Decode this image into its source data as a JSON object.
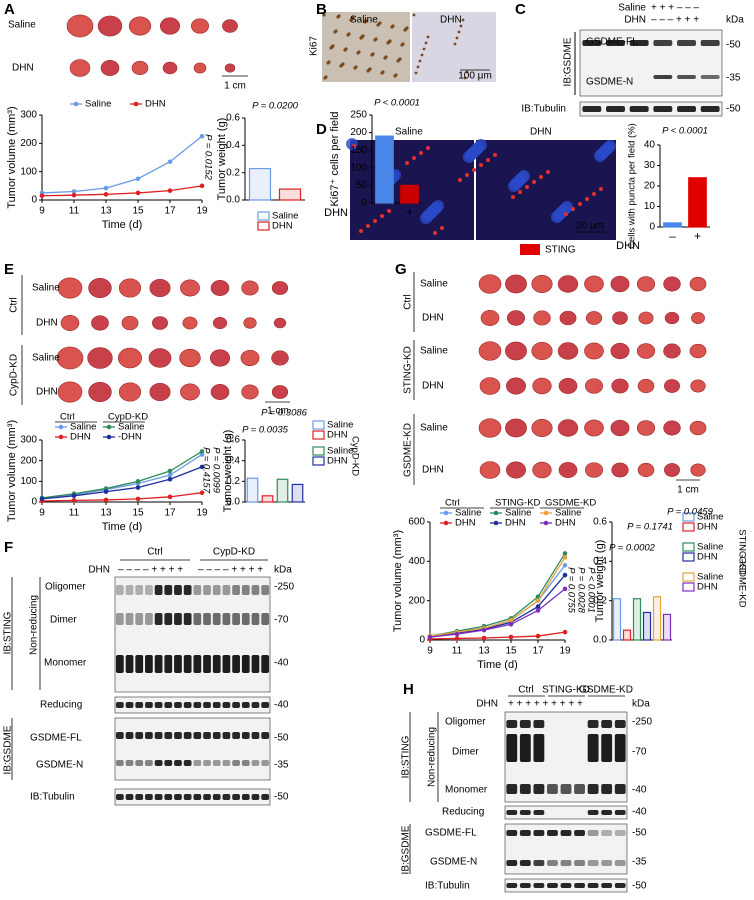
{
  "figure": {
    "A": {
      "label": "A",
      "texts": [
        "Saline",
        "DHN",
        "1 cm"
      ]
    },
    "B": {
      "label": "B",
      "texts": [
        "Saline",
        "DHN",
        "Ki67",
        "100 μm"
      ]
    },
    "C": {
      "label": "C",
      "texts": [
        "Saline",
        "DHN",
        "+ + + – – –",
        "– – – + + +",
        "kDa",
        "GSDME-FL",
        "GSDME-N",
        "IB:GSDME",
        "IB:Tubulin",
        "-50",
        "-35",
        "-50"
      ]
    },
    "D": {
      "label": "D",
      "texts": [
        "Saline",
        "DHN",
        "20 μm",
        "STING"
      ]
    },
    "E": {
      "label": "E",
      "texts": [
        "Saline",
        "DHN",
        "Saline",
        "DHN",
        "Ctrl",
        "CypD-KD",
        "1 cm"
      ]
    },
    "F": {
      "label": "F",
      "texts": [
        "DHN",
        "– – – – + + + +",
        "– – – – + + + +",
        "Ctrl",
        "CypD-KD",
        "kDa",
        "Oligomer",
        "Dimer",
        "Monomer",
        "Non-reducing",
        "IB:STING",
        "Reducing",
        "IB:GSDME",
        "GSDME-FL",
        "GSDME-N",
        "IB:Tubulin",
        "-250",
        "-70",
        "-40",
        "-40",
        "-50",
        "-35",
        "-50"
      ]
    },
    "G": {
      "label": "G",
      "texts": [
        "Saline",
        "DHN",
        "Saline",
        "DHN",
        "Saline",
        "DHN",
        "Ctrl",
        "STING-KD",
        "GSDME-KD",
        "1 cm"
      ]
    },
    "H": {
      "label": "H",
      "texts": [
        "DHN",
        "+ + + + + + + + +",
        "Ctrl",
        "STING-KD",
        "GSDME-KD",
        "kDa",
        "Oligomer",
        "Dimer",
        "Monomer",
        "Non-reducing",
        "IB:STING",
        "Reducing",
        "IB:GSDME",
        "GSDME-FL",
        "GSDME-N",
        "IB:Tubulin",
        "-250",
        "-70",
        "-40",
        "-40",
        "-50",
        "-35",
        "-50"
      ]
    }
  },
  "chart_data": [
    {
      "type": "line",
      "xlabel": "Time (d)",
      "ylabel": "Tumor volume (mm³)",
      "x": [
        9,
        11,
        13,
        15,
        17,
        19
      ],
      "xlim": [
        9,
        19
      ],
      "xticks": [
        9,
        11,
        13,
        15,
        17,
        19
      ],
      "ylim": [
        0,
        300
      ],
      "yticks": [
        0,
        100,
        200,
        300
      ],
      "series": [
        {
          "name": "Saline",
          "color": "#6a9be8",
          "values": [
            25,
            30,
            42,
            75,
            135,
            225
          ]
        },
        {
          "name": "DHN",
          "color": "#e02020",
          "values": [
            15,
            17,
            20,
            25,
            33,
            50
          ]
        }
      ],
      "annotations": [
        "P = 0.0152"
      ]
    },
    {
      "type": "bar",
      "bar_style": "outline",
      "ylabel": "Tumor weight (g)",
      "categories": [
        "Saline",
        "DHN"
      ],
      "values": [
        0.23,
        0.08
      ],
      "colors": [
        "#6a9be8",
        "#e02020"
      ],
      "ylim": [
        0,
        0.6
      ],
      "yticks": [
        {
          "value": 0,
          "label": "0.0"
        },
        {
          "value": 0.2,
          "label": "0.2"
        },
        {
          "value": 0.4,
          "label": "0.4"
        },
        {
          "value": 0.6,
          "label": "0.6"
        }
      ],
      "annotations": [
        "P = 0.0200"
      ]
    },
    {
      "type": "bar",
      "bar_style": "solid",
      "ylabel": "Ki67⁺ cells per field",
      "xlabel": "DHN",
      "categories": [
        "–",
        "+"
      ],
      "values": [
        190,
        50
      ],
      "colors": [
        "#4a86e8",
        "#cc0000"
      ],
      "ylim": [
        0,
        250
      ],
      "yticks": [
        0,
        50,
        100,
        150,
        200,
        250
      ],
      "annotations": [
        "P < 0.0001"
      ]
    },
    {
      "type": "bar",
      "bar_style": "solid",
      "ylabel": "Cells with puncta per field (%)",
      "xlabel": "DHN",
      "categories": [
        "–",
        "+"
      ],
      "values": [
        2,
        24
      ],
      "colors": [
        "#4a86e8",
        "#e00000"
      ],
      "ylim": [
        0,
        40
      ],
      "yticks": [
        0,
        10,
        20,
        30,
        40
      ],
      "annotations": [
        "P < 0.0001"
      ]
    },
    {
      "type": "line",
      "xlabel": "Time (d)",
      "ylabel": "Tumor volume (mm³)",
      "x": [
        9,
        11,
        13,
        15,
        17,
        19
      ],
      "xlim": [
        9,
        19
      ],
      "xticks": [
        9,
        11,
        13,
        15,
        17,
        19
      ],
      "ylim": [
        0,
        300
      ],
      "yticks": [
        0,
        100,
        200,
        300
      ],
      "legend_groups": [
        "Ctrl",
        "CypD-KD"
      ],
      "series": [
        {
          "name": "Saline",
          "color": "#6a9be8",
          "values": [
            20,
            35,
            60,
            90,
            130,
            230
          ]
        },
        {
          "name": "DHN",
          "color": "#e02020",
          "values": [
            5,
            8,
            10,
            15,
            25,
            45
          ]
        },
        {
          "name": "Saline",
          "color": "#2e8b57",
          "values": [
            20,
            40,
            65,
            100,
            150,
            245
          ]
        },
        {
          "name": "-DHN",
          "color": "#1f2f9e",
          "values": [
            15,
            30,
            50,
            70,
            110,
            170
          ]
        }
      ],
      "annotations": [
        "P = 0.4157",
        "P = 0.0099"
      ]
    },
    {
      "type": "bar",
      "bar_style": "outline",
      "ylabel": "Tumor weight (g)",
      "categories": [
        "Saline",
        "DHN",
        "Saline",
        "DHN"
      ],
      "legend_groups": [
        "CypD-KD"
      ],
      "values": [
        0.23,
        0.06,
        0.22,
        0.17
      ],
      "colors": [
        "#6a9be8",
        "#e02020",
        "#2e8b57",
        "#1f2f9e"
      ],
      "ylim": [
        0,
        0.6
      ],
      "yticks": [
        {
          "value": 0,
          "label": "0.0"
        },
        {
          "value": 0.2,
          "label": "0.2"
        },
        {
          "value": 0.4,
          "label": "0.4"
        },
        {
          "value": 0.6,
          "label": "0.6"
        }
      ],
      "annotations": [
        "P = 0.3086",
        "P = 0.0035"
      ]
    },
    {
      "type": "line",
      "xlabel": "Time (d)",
      "ylabel": "Tumor volume (mm³)",
      "x": [
        9,
        11,
        13,
        15,
        17,
        19
      ],
      "xlim": [
        9,
        19
      ],
      "xticks": [
        9,
        11,
        13,
        15,
        17,
        19
      ],
      "ylim": [
        0,
        600
      ],
      "yticks": [
        0,
        200,
        400,
        600
      ],
      "legend_groups": [
        "Ctrl",
        "STING-KD",
        "GSDME-KD"
      ],
      "series": [
        {
          "name": "Saline",
          "color": "#6a9be8",
          "values": [
            20,
            40,
            60,
            100,
            200,
            380
          ]
        },
        {
          "name": "DHN",
          "color": "#e02020",
          "values": [
            5,
            8,
            10,
            15,
            20,
            40
          ]
        },
        {
          "name": "Saline",
          "color": "#2e8b57",
          "values": [
            20,
            45,
            70,
            110,
            220,
            440
          ]
        },
        {
          "name": "DHN",
          "color": "#1f2f9e",
          "values": [
            15,
            35,
            55,
            90,
            170,
            330
          ]
        },
        {
          "name": "Saline",
          "color": "#e6a23c",
          "values": [
            20,
            40,
            60,
            100,
            200,
            420
          ]
        },
        {
          "name": "DHN",
          "color": "#7b2fbe",
          "values": [
            15,
            30,
            50,
            80,
            150,
            260
          ]
        }
      ],
      "annotations": [
        "P = 0.0755",
        "P = 0.0028",
        "P < 0.0001"
      ]
    },
    {
      "type": "bar",
      "bar_style": "outline",
      "ylabel": "Tumor weight (g)",
      "categories": [
        "Saline",
        "DHN",
        "Saline",
        "DHN",
        "Saline",
        "DHN"
      ],
      "legend_groups": [
        "STING-KD",
        "GSDME-KD"
      ],
      "values": [
        0.21,
        0.05,
        0.21,
        0.14,
        0.22,
        0.13
      ],
      "colors": [
        "#6a9be8",
        "#e02020",
        "#2e8b57",
        "#1f2f9e",
        "#e6a23c",
        "#7b2fbe"
      ],
      "ylim": [
        0,
        0.6
      ],
      "yticks": [
        {
          "value": 0,
          "label": "0.0"
        },
        {
          "value": 0.2,
          "label": "0.2"
        },
        {
          "value": 0.4,
          "label": "0.4"
        },
        {
          "value": 0.6,
          "label": "0.6"
        }
      ],
      "annotations": [
        "P = 0.0002",
        "P = 0.1741",
        "P = 0.0459"
      ]
    }
  ]
}
